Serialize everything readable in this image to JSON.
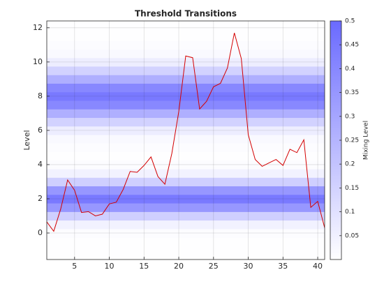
{
  "chart_data": {
    "type": "line",
    "title": "Threshold Transitions",
    "ylabel": "Level",
    "x": [
      1,
      2,
      3,
      4,
      5,
      6,
      7,
      8,
      9,
      10,
      11,
      12,
      13,
      14,
      15,
      16,
      17,
      18,
      19,
      20,
      21,
      22,
      23,
      24,
      25,
      26,
      27,
      28,
      29,
      30,
      31,
      32,
      33,
      34,
      35,
      36,
      37,
      38,
      39,
      40,
      41
    ],
    "values": [
      0.65,
      0.1,
      1.4,
      3.1,
      2.5,
      1.2,
      1.25,
      1.0,
      1.1,
      1.7,
      1.8,
      2.55,
      3.6,
      3.55,
      3.95,
      4.45,
      3.3,
      2.85,
      4.65,
      7.1,
      10.35,
      10.25,
      7.25,
      7.7,
      8.55,
      8.75,
      9.65,
      11.7,
      10.2,
      5.75,
      4.3,
      3.9,
      4.1,
      4.3,
      3.95,
      4.9,
      4.7,
      5.45,
      1.5,
      1.85,
      0.3
    ],
    "color": "#d40000",
    "xlim": [
      1,
      41
    ],
    "xticks": [
      5,
      10,
      15,
      20,
      25,
      30,
      35,
      40
    ],
    "ylim": [
      -1.55,
      12.4
    ],
    "yticks": [
      0,
      2,
      4,
      6,
      8,
      10,
      12
    ],
    "grid": true,
    "heatmap": {
      "y": [
        -1.5,
        -1,
        -0.5,
        0,
        0.5,
        1,
        1.5,
        2,
        2.5,
        3,
        3.5,
        4,
        4.5,
        5,
        5.5,
        6,
        6.5,
        7,
        7.5,
        8,
        8.5,
        9,
        9.5,
        10,
        10.5,
        11,
        11.5,
        12
      ],
      "values": [
        0.005,
        0.005,
        0.005,
        0.01,
        0.045,
        0.16,
        0.35,
        0.45,
        0.35,
        0.16,
        0.045,
        0.01,
        0.005,
        0.01,
        0.02,
        0.06,
        0.15,
        0.27,
        0.4,
        0.45,
        0.4,
        0.27,
        0.15,
        0.06,
        0.02,
        0.01,
        0.005,
        0.005
      ],
      "colors": [
        "#ffffff",
        "#6a6aff"
      ]
    },
    "colorbar": {
      "label": "Mixing Level",
      "clim": [
        0,
        0.5
      ],
      "ticks": [
        0.05,
        0.1,
        0.15,
        0.2,
        0.25,
        0.3,
        0.35,
        0.4,
        0.45,
        0.5
      ]
    }
  }
}
